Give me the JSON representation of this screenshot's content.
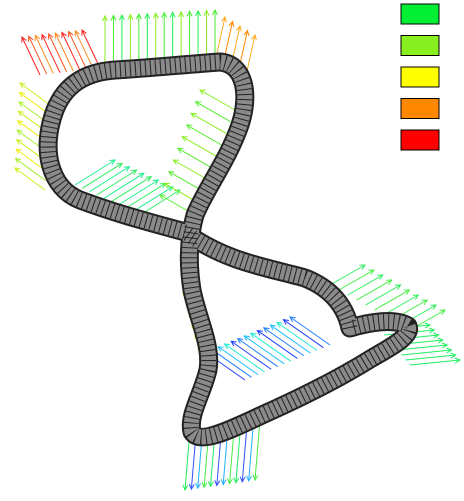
{
  "legend": {
    "colors": [
      "#00ee33",
      "#88f020",
      "#ffff00",
      "#ff8800",
      "#ff0000"
    ]
  }
}
